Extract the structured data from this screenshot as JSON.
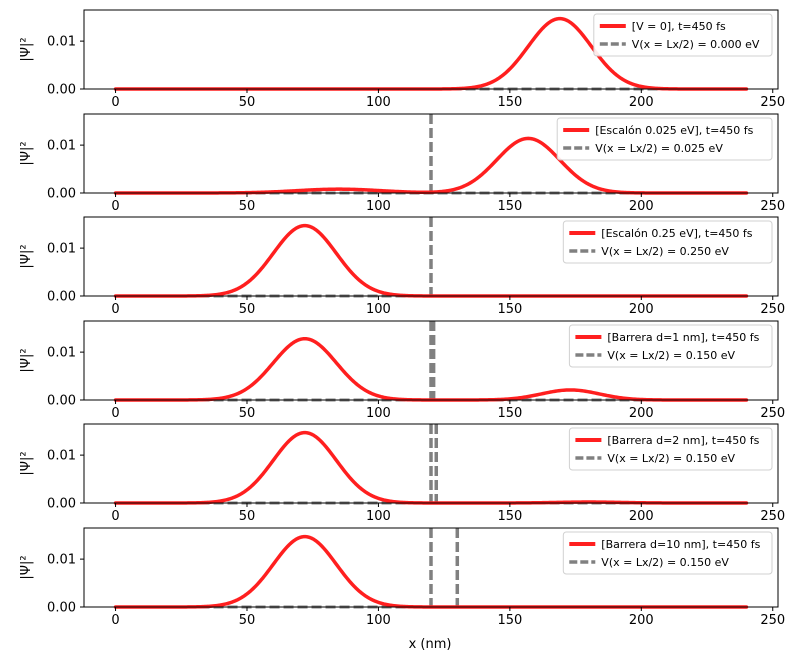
{
  "figure": {
    "xlabel": "x (nm)",
    "ylabel": "|Ψ|²"
  },
  "colors": {
    "wave": "#ff1f1f",
    "potential": "#808080"
  },
  "chart_data": [
    {
      "type": "line",
      "xlim": [
        -12,
        252
      ],
      "ylim": [
        0,
        0.0165
      ],
      "xticks": [
        "0",
        "50",
        "100",
        "150",
        "200",
        "250"
      ],
      "yticks": [
        "0.00",
        "0.01"
      ],
      "wave_components": [
        {
          "center": 169,
          "sigma": 12,
          "peak": 0.0147
        }
      ],
      "potential_lines": [],
      "series": [
        {
          "name": "[V = 0], t=450 fs"
        },
        {
          "name": "V(x = Lx/2) = 0.000 eV"
        }
      ]
    },
    {
      "type": "line",
      "xlim": [
        -12,
        252
      ],
      "ylim": [
        0,
        0.0165
      ],
      "xticks": [
        "0",
        "50",
        "100",
        "150",
        "200",
        "250"
      ],
      "yticks": [
        "0.00",
        "0.01"
      ],
      "wave_components": [
        {
          "center": 157,
          "sigma": 12,
          "peak": 0.0114
        },
        {
          "center": 85,
          "sigma": 16,
          "peak": 0.0008
        }
      ],
      "potential_lines": [
        120
      ],
      "series": [
        {
          "name": "[Escalón 0.025 eV], t=450 fs"
        },
        {
          "name": "V(x = Lx/2) = 0.025 eV"
        }
      ]
    },
    {
      "type": "line",
      "xlim": [
        -12,
        252
      ],
      "ylim": [
        0,
        0.0165
      ],
      "xticks": [
        "0",
        "50",
        "100",
        "150",
        "200",
        "250"
      ],
      "yticks": [
        "0.00",
        "0.01"
      ],
      "wave_components": [
        {
          "center": 72,
          "sigma": 12,
          "peak": 0.0147
        }
      ],
      "potential_lines": [
        120
      ],
      "series": [
        {
          "name": "[Escalón 0.25 eV], t=450 fs"
        },
        {
          "name": "V(x = Lx/2) = 0.250 eV"
        }
      ]
    },
    {
      "type": "line",
      "xlim": [
        -12,
        252
      ],
      "ylim": [
        0,
        0.0165
      ],
      "xticks": [
        "0",
        "50",
        "100",
        "150",
        "200",
        "250"
      ],
      "yticks": [
        "0.00",
        "0.01"
      ],
      "wave_components": [
        {
          "center": 72,
          "sigma": 12,
          "peak": 0.0128
        },
        {
          "center": 173,
          "sigma": 11,
          "peak": 0.0021
        }
      ],
      "potential_lines": [
        120,
        121
      ],
      "series": [
        {
          "name": "[Barrera d=1 nm], t=450 fs"
        },
        {
          "name": "V(x = Lx/2) = 0.150 eV"
        }
      ]
    },
    {
      "type": "line",
      "xlim": [
        -12,
        252
      ],
      "ylim": [
        0,
        0.0165
      ],
      "xticks": [
        "0",
        "50",
        "100",
        "150",
        "200",
        "250"
      ],
      "yticks": [
        "0.00",
        "0.01"
      ],
      "wave_components": [
        {
          "center": 72,
          "sigma": 12,
          "peak": 0.0147
        },
        {
          "center": 180,
          "sigma": 12,
          "peak": 0.0002
        }
      ],
      "potential_lines": [
        120,
        122
      ],
      "series": [
        {
          "name": "[Barrera d=2 nm], t=450 fs"
        },
        {
          "name": "V(x = Lx/2) = 0.150 eV"
        }
      ]
    },
    {
      "type": "line",
      "xlim": [
        -12,
        252
      ],
      "ylim": [
        0,
        0.0165
      ],
      "xticks": [
        "0",
        "50",
        "100",
        "150",
        "200",
        "250"
      ],
      "yticks": [
        "0.00",
        "0.01"
      ],
      "wave_components": [
        {
          "center": 72,
          "sigma": 12,
          "peak": 0.0147
        }
      ],
      "potential_lines": [
        120,
        130
      ],
      "series": [
        {
          "name": "[Barrera d=10 nm], t=450 fs"
        },
        {
          "name": "V(x = Lx/2) = 0.150 eV"
        }
      ]
    }
  ]
}
